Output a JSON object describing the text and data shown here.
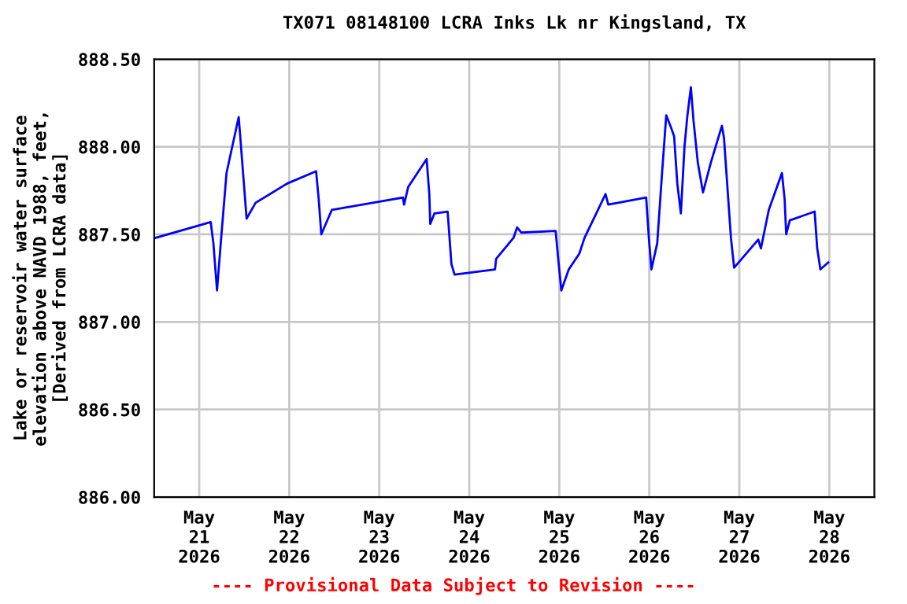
{
  "chart_data": {
    "type": "line",
    "title": "TX071 08148100 LCRA Inks Lk nr Kingsland, TX",
    "ylabel": "Lake or reservoir water surface\nelevation above NAVD 1988, feet,\n[Derived from LCRA data]",
    "annotations": [
      "---- Provisional Data Subject to Revision ----"
    ],
    "x": [
      "2026-05-20T12:20",
      "2026-05-21T03:04",
      "2026-05-21T03:47",
      "2026-05-21T04:45",
      "2026-05-21T05:54",
      "2026-05-21T07:17",
      "2026-05-21T10:32",
      "2026-05-21T11:55",
      "2026-05-21T12:38",
      "2026-05-21T15:02",
      "2026-05-21T23:27",
      "2026-05-22T07:10",
      "2026-05-22T07:52",
      "2026-05-22T08:33",
      "2026-05-22T11:22",
      "2026-05-23T06:19",
      "2026-05-23T06:37",
      "2026-05-23T07:43",
      "2026-05-23T12:38",
      "2026-05-23T13:21",
      "2026-05-23T13:36",
      "2026-05-23T14:44",
      "2026-05-23T18:14",
      "2026-05-23T19:15",
      "2026-05-23T20:05",
      "2026-05-24T06:52",
      "2026-05-24T07:10",
      "2026-05-24T11:48",
      "2026-05-24T12:46",
      "2026-05-24T13:54",
      "2026-05-24T23:02",
      "2026-05-24T23:43",
      "2026-05-25T00:33",
      "2026-05-25T02:32",
      "2026-05-25T05:21",
      "2026-05-25T06:44",
      "2026-05-25T12:20",
      "2026-05-25T13:04",
      "2026-05-25T23:10",
      "2026-05-25T23:53",
      "2026-05-26T00:34",
      "2026-05-26T02:07",
      "2026-05-26T03:30",
      "2026-05-26T04:31",
      "2026-05-26T05:37",
      "2026-05-26T06:37",
      "2026-05-26T07:28",
      "2026-05-26T08:25",
      "2026-05-26T09:23",
      "2026-05-26T10:07",
      "2026-05-26T11:05",
      "2026-05-26T11:47",
      "2026-05-26T12:56",
      "2026-05-26T14:19",
      "2026-05-26T16:25",
      "2026-05-26T19:22",
      "2026-05-26T19:55",
      "2026-05-26T21:46",
      "2026-05-26T22:37",
      "2026-05-27T05:03",
      "2026-05-27T05:46",
      "2026-05-27T07:52",
      "2026-05-27T11:22",
      "2026-05-27T12:05",
      "2026-05-27T12:30",
      "2026-05-27T13:28",
      "2026-05-27T20:05",
      "2026-05-27T20:46",
      "2026-05-27T21:37",
      "2026-05-27T23:43"
    ],
    "series": [
      {
        "color": "#0000ff",
        "values": [
          887.48,
          887.57,
          887.45,
          887.18,
          887.49,
          887.85,
          888.17,
          887.79,
          887.59,
          887.68,
          887.79,
          887.86,
          887.7,
          887.5,
          887.64,
          887.71,
          887.67,
          887.77,
          887.93,
          887.73,
          887.56,
          887.62,
          887.63,
          887.33,
          887.27,
          887.3,
          887.36,
          887.48,
          887.54,
          887.51,
          887.52,
          887.36,
          887.18,
          887.3,
          887.39,
          887.48,
          887.73,
          887.67,
          887.71,
          887.48,
          887.3,
          887.45,
          887.88,
          888.18,
          888.12,
          888.06,
          887.79,
          887.62,
          888.0,
          888.17,
          888.34,
          888.15,
          887.91,
          887.74,
          887.91,
          888.12,
          888.05,
          887.48,
          887.31,
          887.47,
          887.42,
          887.64,
          887.85,
          887.7,
          887.5,
          887.58,
          887.63,
          887.42,
          887.3,
          887.34
        ]
      }
    ],
    "xlim": [
      "2026-05-20T12:00",
      "2026-05-28T12:00"
    ],
    "xticks": [
      {
        "value": "2026-05-21",
        "label": "May\n21\n2026"
      },
      {
        "value": "2026-05-22",
        "label": "May\n22\n2026"
      },
      {
        "value": "2026-05-23",
        "label": "May\n23\n2026"
      },
      {
        "value": "2026-05-24",
        "label": "May\n24\n2026"
      },
      {
        "value": "2026-05-25",
        "label": "May\n25\n2026"
      },
      {
        "value": "2026-05-26",
        "label": "May\n26\n2026"
      },
      {
        "value": "2026-05-27",
        "label": "May\n27\n2026"
      },
      {
        "value": "2026-05-28",
        "label": "May\n28\n2026"
      }
    ],
    "ylim": [
      886.0,
      888.5
    ],
    "yticks": [
      {
        "value": 886.0,
        "label": "886.00"
      },
      {
        "value": 886.5,
        "label": "886.50"
      },
      {
        "value": 887.0,
        "label": "887.00"
      },
      {
        "value": 887.5,
        "label": "887.50"
      },
      {
        "value": 888.0,
        "label": "888.00"
      },
      {
        "value": 888.5,
        "label": "888.50"
      }
    ],
    "grid": true,
    "line_style": "solid"
  }
}
